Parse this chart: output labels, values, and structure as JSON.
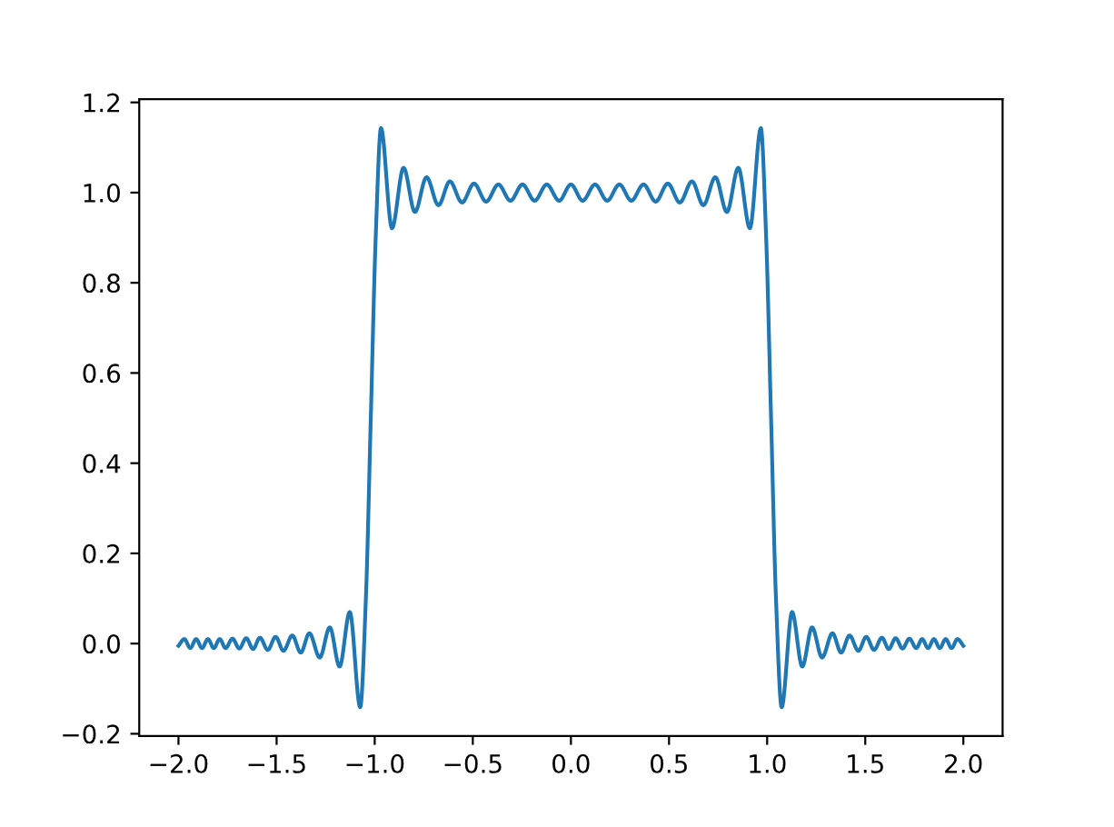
{
  "chart_data": {
    "type": "line",
    "x": [
      -2.0,
      -1.97,
      -1.94,
      -1.91,
      -1.88,
      -1.85,
      -1.82,
      -1.79,
      -1.76,
      -1.725,
      -1.69,
      -1.655,
      -1.62,
      -1.585,
      -1.545,
      -1.505,
      -1.465,
      -1.42,
      -1.377,
      -1.333,
      -1.28,
      -1.229,
      -1.179,
      -1.127,
      -1.074,
      -1.045,
      -1.02,
      -0.995,
      -0.968,
      -0.912,
      -0.853,
      -0.795,
      -0.736,
      -0.675,
      -0.617,
      -0.555,
      -0.494,
      -0.432,
      -0.37,
      -0.308,
      -0.247,
      -0.185,
      -0.123,
      -0.06,
      0,
      0.06,
      0.123,
      0.185,
      0.247,
      0.308,
      0.37,
      0.432,
      0.494,
      0.555,
      0.617,
      0.675,
      0.736,
      0.795,
      0.853,
      0.912,
      0.968,
      0.995,
      1.02,
      1.045,
      1.074,
      1.127,
      1.179,
      1.229,
      1.28,
      1.333,
      1.377,
      1.42,
      1.465,
      1.505,
      1.545,
      1.585,
      1.62,
      1.655,
      1.69,
      1.725,
      1.76,
      1.79,
      1.82,
      1.85,
      1.88,
      1.91,
      1.94,
      1.97,
      2.0
    ],
    "series": [
      {
        "color": "#1f77b4",
        "values": [
          -0.005,
          0.01,
          -0.01,
          0.01,
          -0.01,
          0.01,
          -0.01,
          0.01,
          -0.01,
          0.011,
          -0.011,
          0.012,
          -0.012,
          0.013,
          -0.014,
          0.015,
          -0.016,
          0.018,
          -0.02,
          0.023,
          -0.031,
          0.036,
          -0.051,
          0.07,
          -0.141,
          0.1,
          0.5,
          0.9,
          1.143,
          0.921,
          1.055,
          0.957,
          1.034,
          0.972,
          1.025,
          0.978,
          1.02,
          0.98,
          1.018,
          0.982,
          1.018,
          0.982,
          1.018,
          0.982,
          1.018,
          0.982,
          1.018,
          0.982,
          1.018,
          0.982,
          1.018,
          0.98,
          1.02,
          0.978,
          1.025,
          0.972,
          1.034,
          0.957,
          1.055,
          0.921,
          1.143,
          0.9,
          0.5,
          0.1,
          -0.141,
          0.07,
          -0.051,
          0.036,
          -0.031,
          0.023,
          -0.02,
          0.018,
          -0.016,
          0.015,
          -0.014,
          0.013,
          -0.012,
          0.012,
          -0.011,
          0.011,
          -0.01,
          0.01,
          -0.01,
          0.01,
          -0.01,
          0.01,
          -0.01,
          0.01,
          -0.005
        ]
      }
    ],
    "xlim": [
      -2.2,
      2.2
    ],
    "ylim": [
      -0.205,
      1.207
    ],
    "xticks": [
      {
        "value": -2.0,
        "label": "−2.0"
      },
      {
        "value": -1.5,
        "label": "−1.5"
      },
      {
        "value": -1.0,
        "label": "−1.0"
      },
      {
        "value": -0.5,
        "label": "−0.5"
      },
      {
        "value": 0.0,
        "label": "0.0"
      },
      {
        "value": 0.5,
        "label": "0.5"
      },
      {
        "value": 1.0,
        "label": "1.0"
      },
      {
        "value": 1.5,
        "label": "1.5"
      },
      {
        "value": 2.0,
        "label": "2.0"
      }
    ],
    "yticks": [
      {
        "value": -0.2,
        "label": "−0.2"
      },
      {
        "value": 0.0,
        "label": "0.0"
      },
      {
        "value": 0.2,
        "label": "0.2"
      },
      {
        "value": 0.4,
        "label": "0.4"
      },
      {
        "value": 0.6,
        "label": "0.6"
      },
      {
        "value": 0.8,
        "label": "0.8"
      },
      {
        "value": 1.0,
        "label": "1.0"
      },
      {
        "value": 1.2,
        "label": "1.2"
      }
    ],
    "grid": false,
    "marker": "none",
    "line_style": "solid"
  }
}
